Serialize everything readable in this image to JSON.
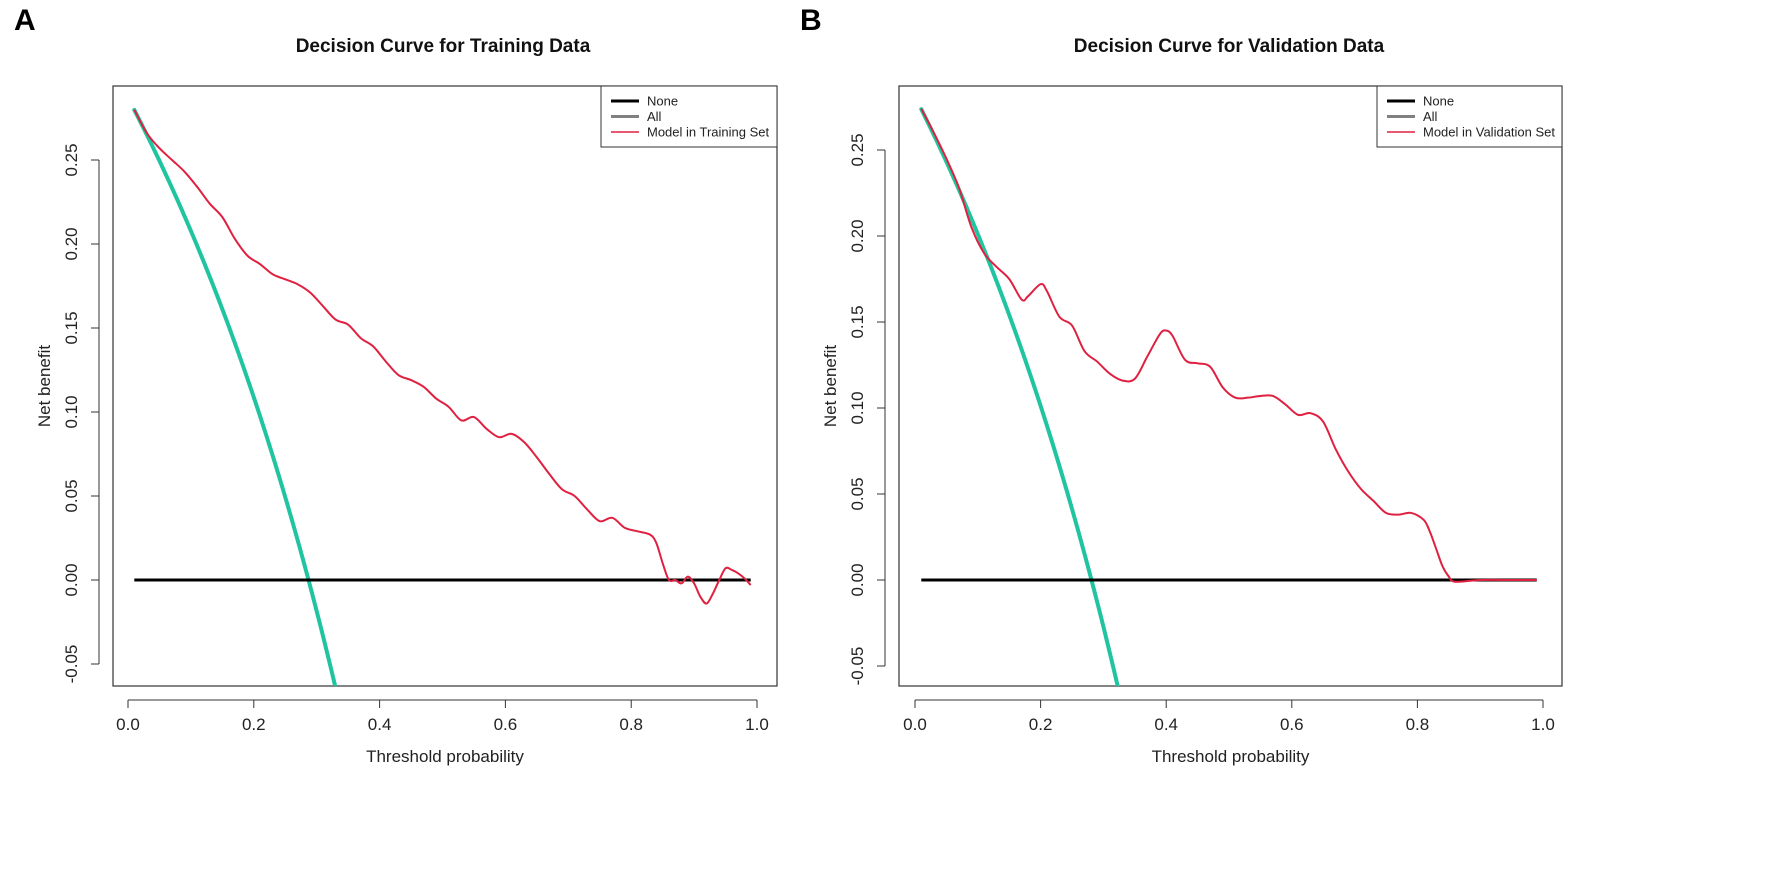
{
  "panels": [
    {
      "letter": "A",
      "title": "Decision Curve for Training Data",
      "xlabel": "Threshold probability",
      "ylabel": "Net benefit",
      "legend": [
        "None",
        "All",
        "Model in Training Set"
      ],
      "xticks": [
        "0.0",
        "0.2",
        "0.4",
        "0.6",
        "0.8",
        "1.0"
      ],
      "yticks": [
        "-0.05",
        "0.00",
        "0.05",
        "0.10",
        "0.15",
        "0.20",
        "0.25"
      ]
    },
    {
      "letter": "B",
      "title": "Decision Curve for Validation Data",
      "xlabel": "Threshold probability",
      "ylabel": "Net benefit",
      "legend": [
        "None",
        "All",
        "Model in Validation Set"
      ],
      "xticks": [
        "0.0",
        "0.2",
        "0.4",
        "0.6",
        "0.8",
        "1.0"
      ],
      "yticks": [
        "-0.05",
        "0.00",
        "0.05",
        "0.10",
        "0.15",
        "0.20",
        "0.25"
      ]
    }
  ],
  "chart_data": [
    {
      "type": "line",
      "title": "Decision Curve for Training Data",
      "xlabel": "Threshold probability",
      "ylabel": "Net benefit",
      "xlim": [
        -0.02,
        1.03
      ],
      "ylim": [
        -0.063,
        0.292
      ],
      "xticks": [
        0,
        0.2,
        0.4,
        0.6,
        0.8,
        1.0
      ],
      "yticks": [
        -0.05,
        0,
        0.05,
        0.1,
        0.15,
        0.2,
        0.25
      ],
      "legend_position": "top-right",
      "colors": {
        "none": "#000000",
        "all": "#20c4a0",
        "model": "#e02040",
        "legend_all": "#808080"
      },
      "series": [
        {
          "name": "None",
          "x": [
            0.01,
            0.99
          ],
          "y": [
            0,
            0
          ]
        },
        {
          "name": "All",
          "prevalence": 0.287,
          "x_range": [
            0.01,
            0.332
          ]
        },
        {
          "name": "Model in Training Set",
          "x": [
            0.01,
            0.03,
            0.05,
            0.07,
            0.09,
            0.11,
            0.13,
            0.15,
            0.17,
            0.19,
            0.21,
            0.23,
            0.25,
            0.27,
            0.29,
            0.31,
            0.33,
            0.35,
            0.37,
            0.39,
            0.41,
            0.43,
            0.45,
            0.47,
            0.49,
            0.51,
            0.53,
            0.55,
            0.57,
            0.59,
            0.61,
            0.63,
            0.65,
            0.67,
            0.69,
            0.71,
            0.73,
            0.75,
            0.77,
            0.79,
            0.81,
            0.83,
            0.84,
            0.85,
            0.86,
            0.87,
            0.88,
            0.89,
            0.9,
            0.91,
            0.92,
            0.93,
            0.94,
            0.95,
            0.96,
            0.97,
            0.98,
            0.99
          ],
          "y": [
            0.28,
            0.266,
            0.257,
            0.25,
            0.243,
            0.234,
            0.224,
            0.216,
            0.203,
            0.193,
            0.188,
            0.182,
            0.179,
            0.176,
            0.171,
            0.163,
            0.155,
            0.152,
            0.144,
            0.139,
            0.13,
            0.122,
            0.119,
            0.115,
            0.108,
            0.103,
            0.095,
            0.097,
            0.09,
            0.085,
            0.087,
            0.082,
            0.073,
            0.063,
            0.054,
            0.05,
            0.042,
            0.035,
            0.037,
            0.031,
            0.029,
            0.027,
            0.022,
            0.01,
            0.0,
            0.0,
            -0.002,
            0.002,
            -0.002,
            -0.01,
            -0.014,
            -0.008,
            0.0,
            0.007,
            0.006,
            0.004,
            0.001,
            -0.003
          ]
        }
      ]
    },
    {
      "type": "line",
      "title": "Decision Curve for Validation Data",
      "xlabel": "Threshold probability",
      "ylabel": "Net benefit",
      "xlim": [
        -0.02,
        1.03
      ],
      "ylim": [
        -0.063,
        0.287
      ],
      "xticks": [
        0,
        0.2,
        0.4,
        0.6,
        0.8,
        1.0
      ],
      "yticks": [
        -0.05,
        0,
        0.05,
        0.1,
        0.15,
        0.2,
        0.25
      ],
      "legend_position": "top-right",
      "colors": {
        "none": "#000000",
        "all": "#20c4a0",
        "model": "#e02040",
        "legend_all": "#808080"
      },
      "series": [
        {
          "name": "None",
          "x": [
            0.01,
            0.99
          ],
          "y": [
            0,
            0
          ]
        },
        {
          "name": "All",
          "prevalence": 0.281,
          "x_range": [
            0.01,
            0.325
          ]
        },
        {
          "name": "Model in Validation Set",
          "x": [
            0.01,
            0.03,
            0.05,
            0.07,
            0.09,
            0.11,
            0.13,
            0.15,
            0.17,
            0.18,
            0.2,
            0.21,
            0.23,
            0.25,
            0.27,
            0.29,
            0.31,
            0.33,
            0.35,
            0.37,
            0.39,
            0.4,
            0.41,
            0.43,
            0.45,
            0.47,
            0.49,
            0.51,
            0.53,
            0.55,
            0.57,
            0.59,
            0.61,
            0.63,
            0.65,
            0.67,
            0.69,
            0.71,
            0.73,
            0.75,
            0.77,
            0.79,
            0.81,
            0.82,
            0.83,
            0.84,
            0.85,
            0.86,
            0.9,
            0.95,
            0.99
          ],
          "y": [
            0.274,
            0.26,
            0.245,
            0.228,
            0.205,
            0.19,
            0.182,
            0.175,
            0.163,
            0.165,
            0.172,
            0.168,
            0.153,
            0.148,
            0.133,
            0.127,
            0.12,
            0.116,
            0.117,
            0.13,
            0.143,
            0.145,
            0.142,
            0.128,
            0.126,
            0.124,
            0.112,
            0.106,
            0.106,
            0.107,
            0.107,
            0.102,
            0.096,
            0.097,
            0.092,
            0.076,
            0.063,
            0.053,
            0.046,
            0.039,
            0.038,
            0.039,
            0.035,
            0.028,
            0.018,
            0.008,
            0.002,
            -0.001,
            0.0,
            0.0,
            0.0
          ]
        }
      ]
    }
  ]
}
